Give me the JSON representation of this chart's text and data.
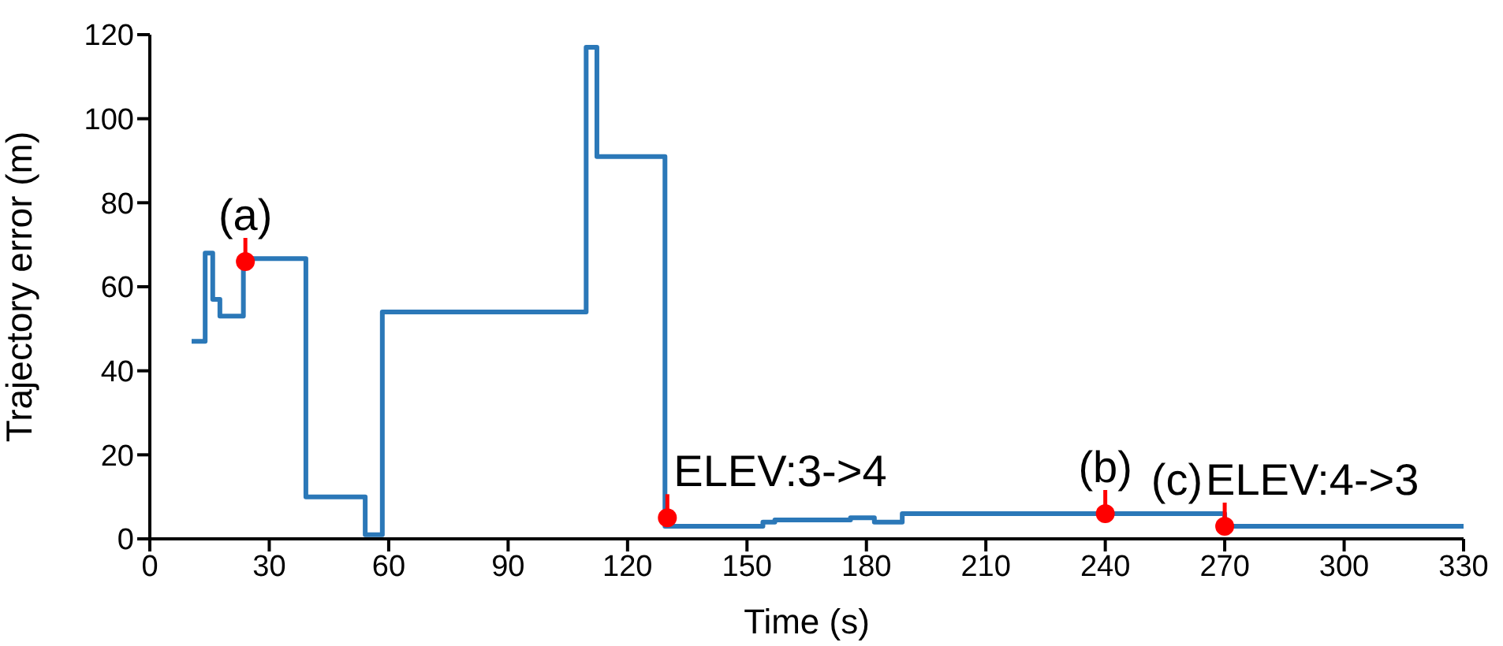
{
  "chart_data": {
    "type": "step",
    "xlabel": "Time (s)",
    "ylabel": "Trajectory error (m)",
    "xlim": [
      0,
      330
    ],
    "xticks": [
      0,
      30,
      60,
      90,
      120,
      150,
      180,
      210,
      240,
      270,
      300,
      330
    ],
    "ylim": [
      0,
      120
    ],
    "yticks": [
      0,
      20,
      40,
      60,
      80,
      100,
      120
    ],
    "grid": false,
    "legend": false,
    "series": [
      {
        "color": "#2b78b8",
        "x": [
          10.5,
          13.9,
          15.8,
          17.6,
          23.5,
          39.2,
          54.1,
          58.4,
          109.6,
          112.3,
          129.4,
          154,
          157,
          176,
          182,
          189,
          270,
          330
        ],
        "values": [
          47,
          68,
          57,
          53,
          66.7,
          10,
          1,
          54,
          117,
          91,
          3,
          4,
          4.5,
          5,
          4,
          6,
          3,
          2.8
        ]
      },
      {
        "type": "scatter",
        "color": "#ff0000",
        "x": [
          24,
          130,
          240,
          270
        ],
        "values": [
          66,
          5,
          6,
          3
        ]
      }
    ],
    "annotations": [
      {
        "text": "(a)",
        "x": 24,
        "y": 66
      },
      {
        "text": "ELEV:3->4",
        "x": 130,
        "y": 5
      },
      {
        "text": "(b)",
        "x": 240,
        "y": 6
      },
      {
        "text": "(c)",
        "x": 270,
        "y": 3
      },
      {
        "text": "ELEV:4->3",
        "x": 270,
        "y": 3
      }
    ]
  }
}
